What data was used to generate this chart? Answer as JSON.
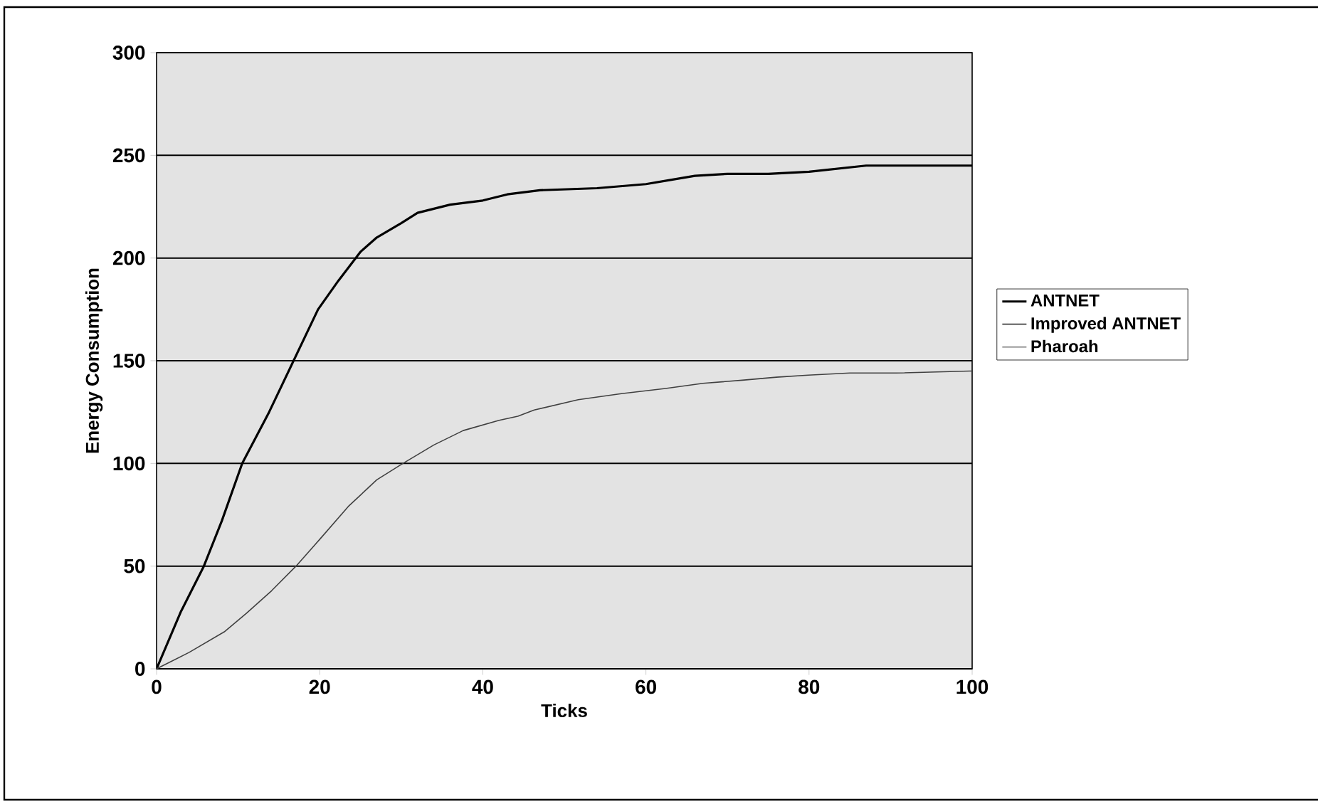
{
  "chart_data": {
    "type": "line",
    "xlabel": "Ticks",
    "ylabel": "Energy Consumption",
    "xlim": [
      0,
      100
    ],
    "xticks": [
      0,
      20,
      40,
      60,
      80,
      100
    ],
    "ylim": [
      0,
      300
    ],
    "yticks": [
      0,
      50,
      100,
      150,
      200,
      250,
      300
    ],
    "grid": "y",
    "legend": "right",
    "marker": "none",
    "line_style": "solid",
    "series": [
      {
        "name": "ANTNET",
        "color": "#000000",
        "x": [
          0,
          3,
          5.8,
          8,
          10.5,
          13.8,
          16.8,
          19.8,
          22.3,
          25,
          27,
          30,
          32,
          36,
          40,
          43,
          47,
          54,
          60,
          66,
          70,
          75,
          80,
          87,
          100
        ],
        "values": [
          0,
          28,
          50,
          72,
          100,
          125,
          150,
          175,
          189,
          203,
          210,
          217,
          222,
          226,
          228,
          231,
          233,
          234,
          236,
          240,
          241,
          241,
          242,
          245,
          245
        ]
      },
      {
        "name": "Improved ANTNET",
        "color": "#404040",
        "x": [
          0,
          4,
          8.3,
          11,
          14.1,
          17.1,
          20,
          23.5,
          27,
          30.2,
          34,
          37.6,
          42,
          44.3,
          46.3,
          51.7,
          57,
          62.4,
          67,
          71.8,
          76,
          79.9,
          85,
          90.6,
          99.7,
          100
        ],
        "values": [
          0,
          8,
          18,
          27,
          38,
          50,
          63,
          79,
          92,
          100,
          109,
          116,
          121,
          123,
          126,
          131,
          134,
          136.5,
          139,
          140.5,
          142,
          143,
          144,
          144,
          145,
          145
        ]
      },
      {
        "name": "Pharoah",
        "values": [
          null
        ]
      }
    ]
  }
}
